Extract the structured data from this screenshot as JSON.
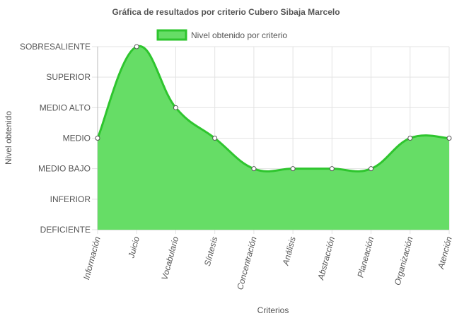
{
  "chart_data": {
    "type": "area",
    "title": "Gráfica de resultados por criterio Cubero Sibaja Marcelo",
    "xlabel": "Criterios",
    "ylabel": "Nivel obtenido",
    "categories": [
      "Información",
      "Juicio",
      "Vocabulario",
      "Síntesis",
      "Concentración",
      "Análisis",
      "Abstracción",
      "Planeación",
      "Organización",
      "Atención"
    ],
    "y_levels": [
      "DEFICIENTE",
      "INFERIOR",
      "MEDIO BAJO",
      "MEDIO",
      "MEDIO ALTO",
      "SUPERIOR",
      "SOBRESALIENTE"
    ],
    "series": [
      {
        "name": "Nivel obtenido por criterio",
        "values": [
          3,
          6,
          4,
          3,
          2,
          2,
          2,
          2,
          3,
          3
        ]
      }
    ],
    "ylim": [
      0,
      6
    ],
    "grid": true,
    "legend": "top-center",
    "colors": {
      "fill": "#66dd66",
      "line": "#2ec52e",
      "point_fill": "#ffffff",
      "point_stroke": "#555555",
      "grid": "#e3e3e3",
      "axis": "#bbbbbb"
    }
  }
}
